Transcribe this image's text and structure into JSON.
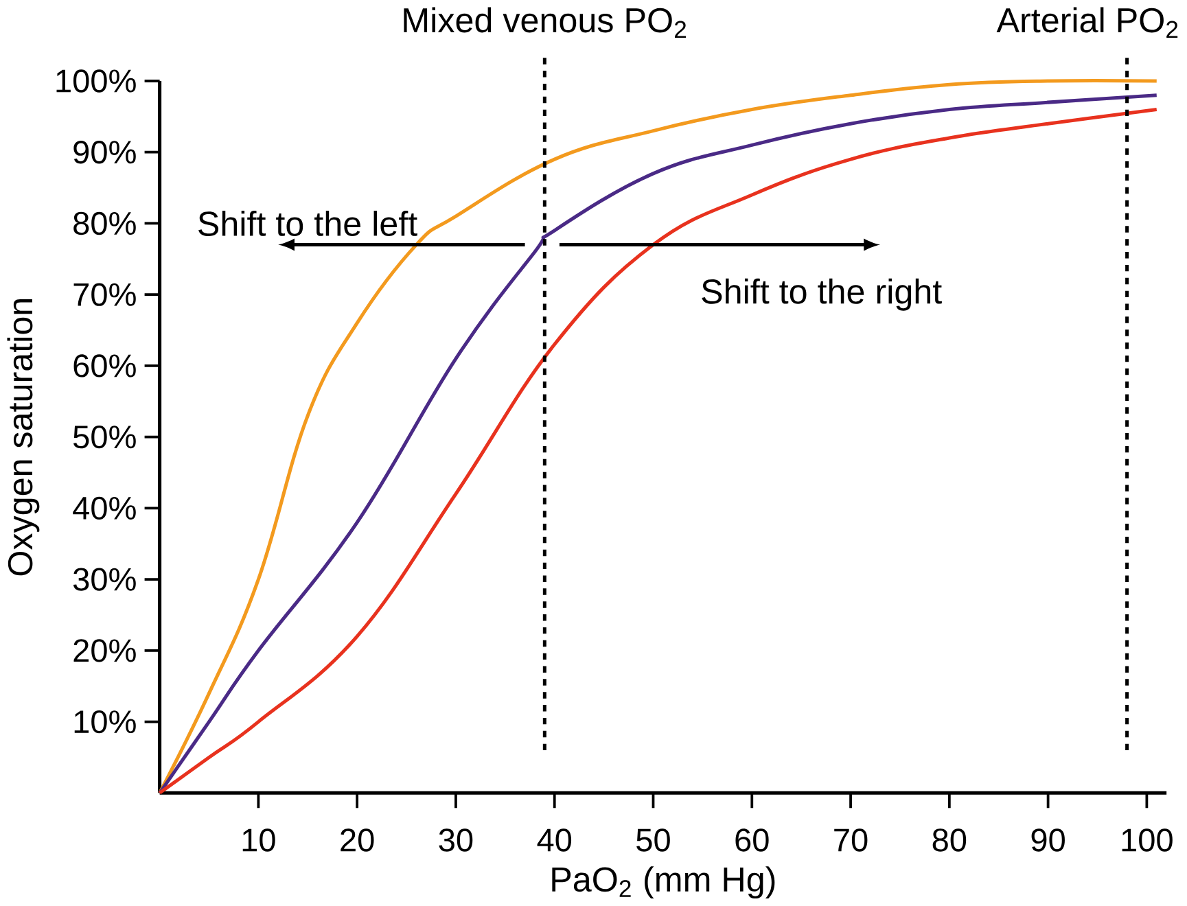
{
  "chart_data": {
    "type": "line",
    "xlabel": "PaO$_{2}$ (mm Hg)",
    "ylabel": "Oxygen saturation",
    "xlim": [
      0,
      102
    ],
    "ylim": [
      0,
      100
    ],
    "xticks": [
      10,
      20,
      30,
      40,
      50,
      60,
      70,
      80,
      90,
      100
    ],
    "yticks": [
      {
        "value": 10,
        "label": "10%"
      },
      {
        "value": 20,
        "label": "20%"
      },
      {
        "value": 30,
        "label": "30%"
      },
      {
        "value": 40,
        "label": "40%"
      },
      {
        "value": 50,
        "label": "50%"
      },
      {
        "value": 60,
        "label": "60%"
      },
      {
        "value": 70,
        "label": "70%"
      },
      {
        "value": 80,
        "label": "80%"
      },
      {
        "value": 90,
        "label": "90%"
      },
      {
        "value": 100,
        "label": "100%"
      }
    ],
    "series": [
      {
        "color": "#f39a1e",
        "x": [
          0,
          5,
          10,
          15,
          20,
          26,
          30,
          40,
          50,
          60,
          70,
          80,
          90,
          101
        ],
        "values": [
          0,
          14,
          30,
          53,
          66,
          77,
          81,
          89,
          93,
          96,
          98,
          99.5,
          100,
          100
        ]
      },
      {
        "color": "#4a2a86",
        "x": [
          0,
          5,
          10,
          20,
          30,
          38,
          40,
          50,
          60,
          70,
          80,
          90,
          101
        ],
        "values": [
          0,
          10,
          20,
          38,
          61,
          76,
          79,
          87,
          91,
          94,
          96,
          97,
          98
        ]
      },
      {
        "color": "#e8321e",
        "x": [
          0,
          5,
          10,
          20,
          30,
          40,
          50,
          60,
          70,
          80,
          90,
          101
        ],
        "values": [
          0,
          5,
          10,
          22,
          42,
          63,
          77,
          84,
          89,
          92,
          94,
          96
        ]
      }
    ],
    "ref_lines": [
      {
        "axis": "x",
        "value": 39,
        "label": "Mixed venous PO$_{2}$",
        "line_style": "dashed"
      },
      {
        "axis": "x",
        "value": 98,
        "label": "Arterial PO$_{2}$",
        "line_style": "dashed"
      }
    ],
    "annotations": [
      "Shift to the left",
      "Shift to the right"
    ]
  }
}
